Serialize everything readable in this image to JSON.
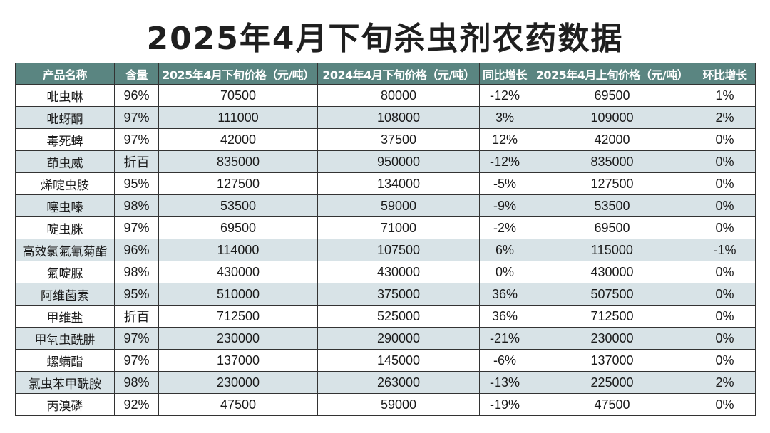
{
  "title": "2025年4月下旬杀虫剂农药数据",
  "chart_data": {
    "type": "table",
    "title": "2025年4月下旬杀虫剂农药数据",
    "columns": [
      "产品名称",
      "含量",
      "2025年4月下旬价格（元/吨）",
      "2024年4月下旬价格（元/吨）",
      "同比增长",
      "2025年4月上旬价格（元/吨）",
      "环比增长"
    ],
    "rows": [
      [
        "吡虫啉",
        "96%",
        "70500",
        "80000",
        "-12%",
        "69500",
        "1%"
      ],
      [
        "吡蚜酮",
        "97%",
        "111000",
        "108000",
        "3%",
        "109000",
        "2%"
      ],
      [
        "毒死蜱",
        "97%",
        "42000",
        "37500",
        "12%",
        "42000",
        "0%"
      ],
      [
        "茚虫威",
        "折百",
        "835000",
        "950000",
        "-12%",
        "835000",
        "0%"
      ],
      [
        "烯啶虫胺",
        "95%",
        "127500",
        "134000",
        "-5%",
        "127500",
        "0%"
      ],
      [
        "噻虫嗪",
        "98%",
        "53500",
        "59000",
        "-9%",
        "53500",
        "0%"
      ],
      [
        "啶虫脒",
        "97%",
        "69500",
        "71000",
        "-2%",
        "69500",
        "0%"
      ],
      [
        "高效氯氟氰菊酯",
        "96%",
        "114000",
        "107500",
        "6%",
        "115000",
        "-1%"
      ],
      [
        "氟啶脲",
        "98%",
        "430000",
        "430000",
        "0%",
        "430000",
        "0%"
      ],
      [
        "阿维菌素",
        "95%",
        "510000",
        "375000",
        "36%",
        "507500",
        "0%"
      ],
      [
        "甲维盐",
        "折百",
        "712500",
        "525000",
        "36%",
        "712500",
        "0%"
      ],
      [
        "甲氧虫酰肼",
        "97%",
        "230000",
        "290000",
        "-21%",
        "230000",
        "0%"
      ],
      [
        "螺螨酯",
        "97%",
        "137000",
        "145000",
        "-6%",
        "137000",
        "0%"
      ],
      [
        "氯虫苯甲酰胺",
        "98%",
        "230000",
        "263000",
        "-13%",
        "225000",
        "2%"
      ],
      [
        "丙溴磷",
        "92%",
        "47500",
        "59000",
        "-19%",
        "47500",
        "0%"
      ]
    ]
  },
  "colors": {
    "header_bg": "#5a8581",
    "header_text": "#ffffff",
    "row_alt_bg": "#d8e3e7",
    "border": "#333333"
  }
}
